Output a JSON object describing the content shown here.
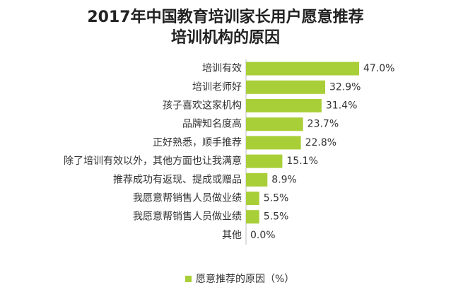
{
  "colors": {
    "bar": "#A9CF38",
    "axis": "#BFBFBF",
    "text": "#333333"
  },
  "chart_data": {
    "type": "bar",
    "orientation": "horizontal",
    "title_lines": [
      "2017年中国教育培训家长用户愿意推荐",
      "培训机构的原因"
    ],
    "categories": [
      "培训有效",
      "培训老师好",
      "孩子喜欢这家机构",
      "品牌知名度高",
      "正好熟悉，顺手推荐",
      "除了培训有效以外，其他方面也让我满意",
      "推荐成功有返现、提成或赠品",
      "我愿意帮销售人员做业绩",
      "我愿意帮销售人员做业绩",
      "其他"
    ],
    "series": [
      {
        "name": "愿意推荐的原因（%）",
        "values": [
          47.0,
          32.9,
          31.4,
          23.7,
          22.8,
          15.1,
          8.9,
          5.5,
          5.5,
          0.0
        ]
      }
    ],
    "value_labels": [
      "47.0%",
      "32.9%",
      "31.4%",
      "23.7%",
      "22.8%",
      "15.1%",
      "8.9%",
      "5.5%",
      "5.5%",
      "0.0%"
    ],
    "xlim": [
      0,
      50
    ],
    "grid": false,
    "legend_position": "bottom"
  }
}
